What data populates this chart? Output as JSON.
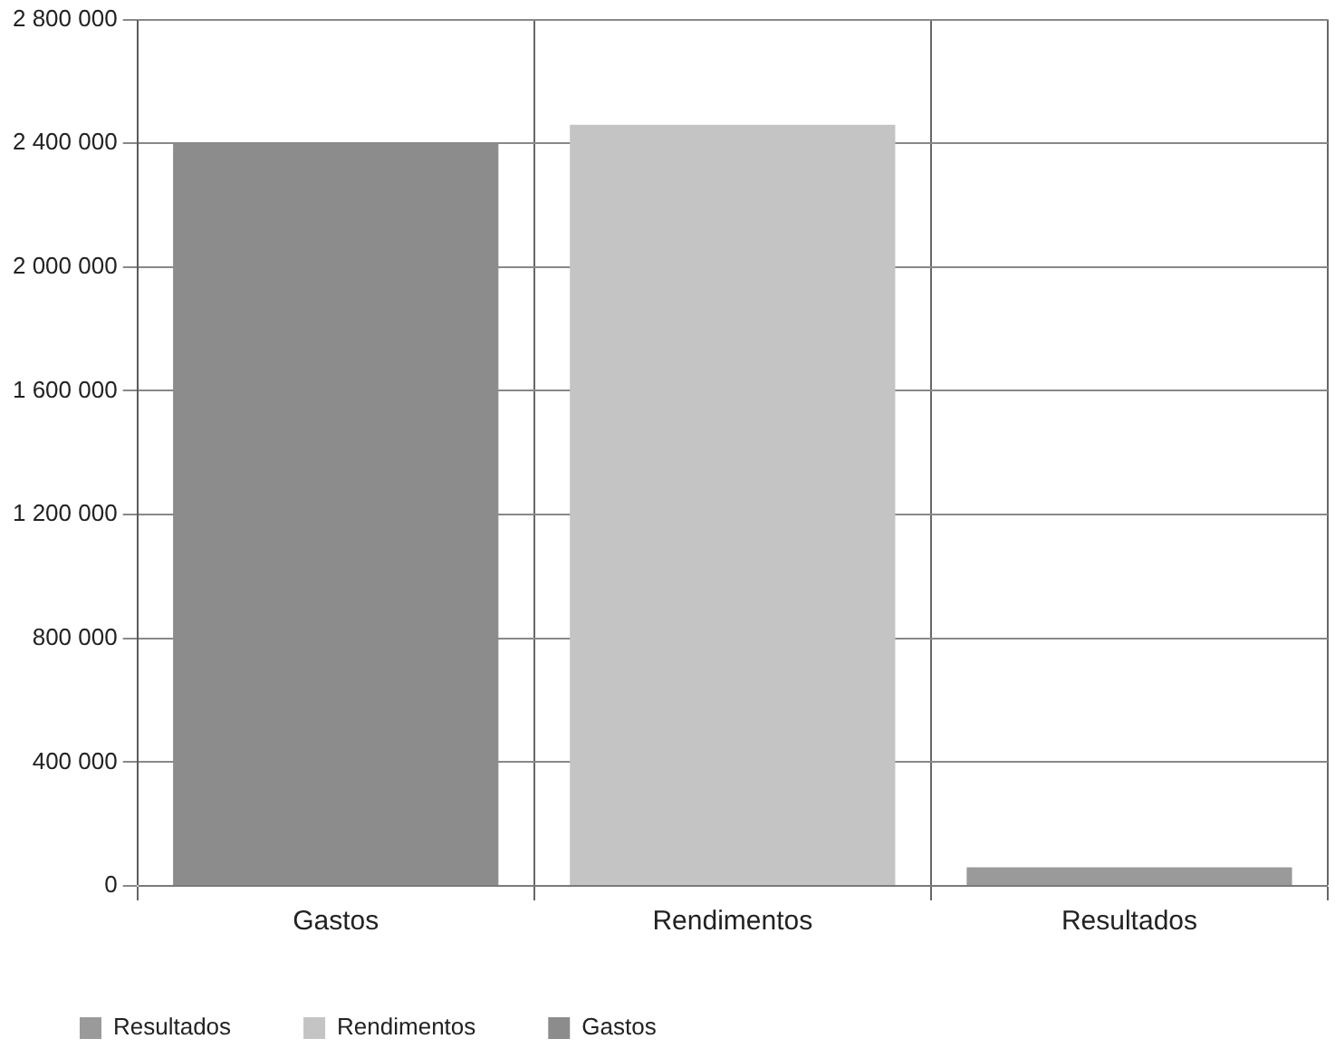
{
  "chart_data": {
    "type": "bar",
    "categories": [
      "Gastos",
      "Rendimentos",
      "Resultados"
    ],
    "series": [
      {
        "name": "Resultados",
        "color": "#9a9a9a",
        "values": [
          null,
          null,
          60000
        ]
      },
      {
        "name": "Rendimentos",
        "color": "#c4c4c4",
        "values": [
          null,
          2460000,
          null
        ]
      },
      {
        "name": "Gastos",
        "color": "#8c8c8c",
        "values": [
          2400000,
          null,
          null
        ]
      }
    ],
    "ylim": [
      0,
      2800000
    ],
    "yticks": [
      0,
      {
        "value": 400000,
        "label": "400 000"
      },
      {
        "value": 800000,
        "label": "800 000"
      },
      {
        "value": 1200000,
        "label": "1 200 000"
      },
      {
        "value": 1600000,
        "label": "1 600 000"
      },
      {
        "value": 2000000,
        "label": "2 000 000"
      },
      {
        "value": 2400000,
        "label": "2 400 000"
      },
      {
        "value": 2800000,
        "label": "2 800 000"
      }
    ],
    "grid": true,
    "legend": "bottom"
  }
}
